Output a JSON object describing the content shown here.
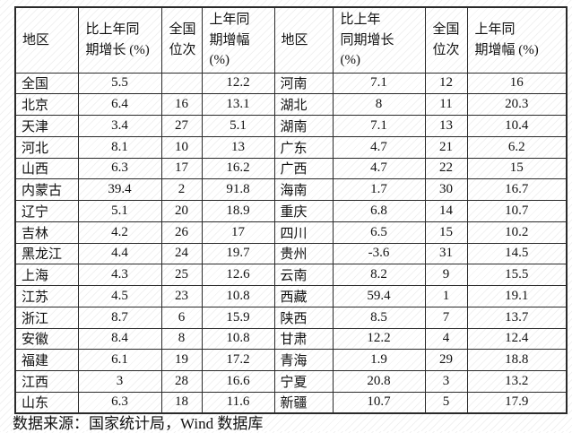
{
  "table": {
    "headers": [
      "地区",
      "比上年同\n期增长 (%)",
      "全国\n位次",
      "上年同\n期增幅\n(%)",
      "地区",
      "比上年\n同期增长\n(%)",
      "全国\n位次",
      "上年同\n期增幅 (%)"
    ],
    "rows": [
      [
        "全国",
        "5.5",
        "",
        "12.2",
        "河南",
        "7.1",
        "12",
        "16"
      ],
      [
        "北京",
        "6.4",
        "16",
        "13.1",
        "湖北",
        "8",
        "11",
        "20.3"
      ],
      [
        "天津",
        "3.4",
        "27",
        "5.1",
        "湖南",
        "7.1",
        "13",
        "10.4"
      ],
      [
        "河北",
        "8.1",
        "10",
        "13",
        "广东",
        "4.7",
        "21",
        "6.2"
      ],
      [
        "山西",
        "6.3",
        "17",
        "16.2",
        "广西",
        "4.7",
        "22",
        "15"
      ],
      [
        "内蒙古",
        "39.4",
        "2",
        "91.8",
        "海南",
        "1.7",
        "30",
        "16.7"
      ],
      [
        "辽宁",
        "5.1",
        "20",
        "18.9",
        "重庆",
        "6.8",
        "14",
        "10.7"
      ],
      [
        "吉林",
        "4.2",
        "26",
        "17",
        "四川",
        "6.5",
        "15",
        "10.2"
      ],
      [
        "黑龙江",
        "4.4",
        "24",
        "19.7",
        "贵州",
        "-3.6",
        "31",
        "14.5"
      ],
      [
        "上海",
        "4.3",
        "25",
        "12.6",
        "云南",
        "8.2",
        "9",
        "15.5"
      ],
      [
        "江苏",
        "4.5",
        "23",
        "10.8",
        "西藏",
        "59.4",
        "1",
        "19.1"
      ],
      [
        "浙江",
        "8.7",
        "6",
        "15.9",
        "陕西",
        "8.5",
        "7",
        "13.7"
      ],
      [
        "安徽",
        "8.4",
        "8",
        "10.8",
        "甘肃",
        "12.2",
        "4",
        "12.4"
      ],
      [
        "福建",
        "6.1",
        "19",
        "17.2",
        "青海",
        "1.9",
        "29",
        "18.8"
      ],
      [
        "江西",
        "3",
        "28",
        "16.6",
        "宁夏",
        "20.8",
        "3",
        "13.2"
      ],
      [
        "山东",
        "6.3",
        "18",
        "11.6",
        "新疆",
        "10.7",
        "5",
        "17.9"
      ]
    ]
  },
  "footer": {
    "source": "数据来源：国家统计局，Wind 数据库"
  },
  "colors": {
    "border": "#2a2a2a",
    "text": "#111111",
    "background": "#ffffff"
  }
}
